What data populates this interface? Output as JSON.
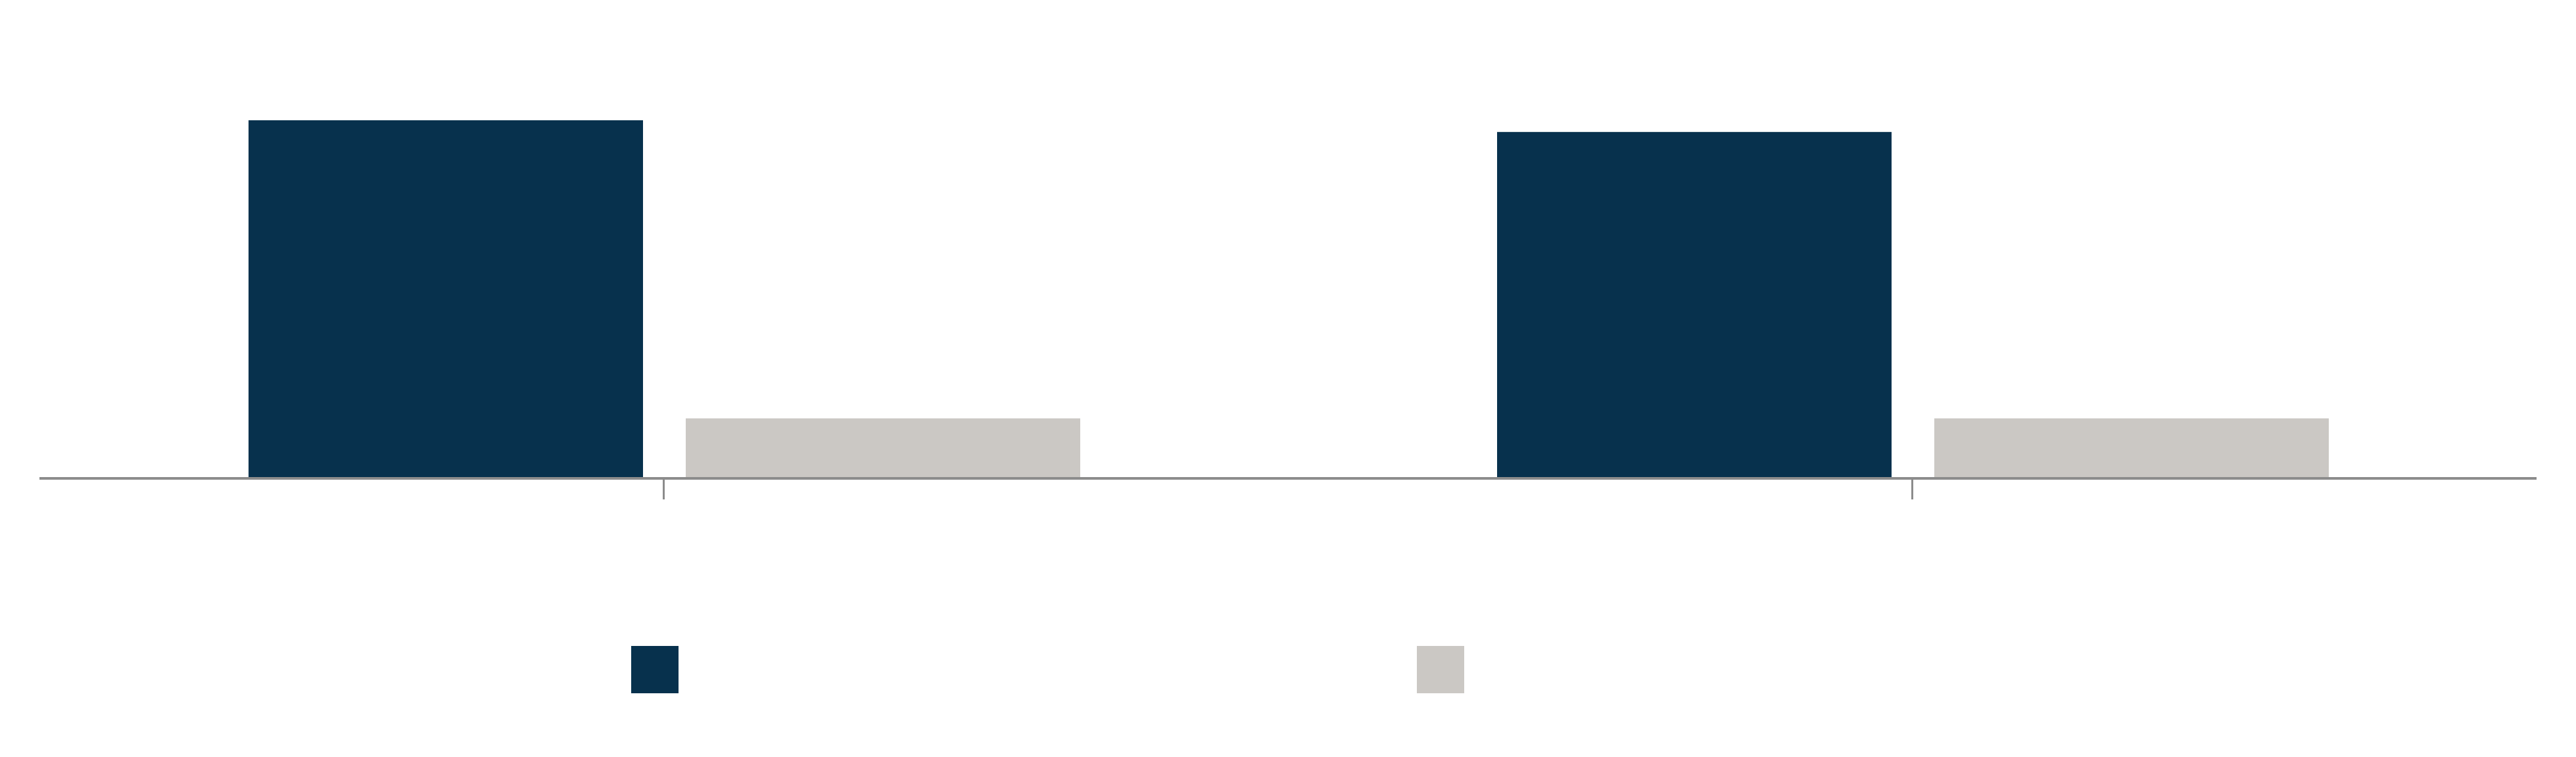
{
  "colors": {
    "series_1": "#07314d",
    "series_2": "#cbc8c4",
    "axis": "#8c8c8c",
    "background": "#ffffff"
  },
  "chart_data": {
    "type": "bar",
    "title": "",
    "xlabel": "",
    "ylabel": "",
    "categories": [
      "",
      ""
    ],
    "ylim": [
      0,
      100
    ],
    "grid": false,
    "legend": {
      "placement": "bottom",
      "entries": [
        "",
        ""
      ]
    },
    "series": [
      {
        "values": [
          88.9,
          86.0
        ],
        "color": "#07314d"
      },
      {
        "values": [
          14.9,
          14.9
        ],
        "color": "#cbc8c4"
      }
    ]
  }
}
